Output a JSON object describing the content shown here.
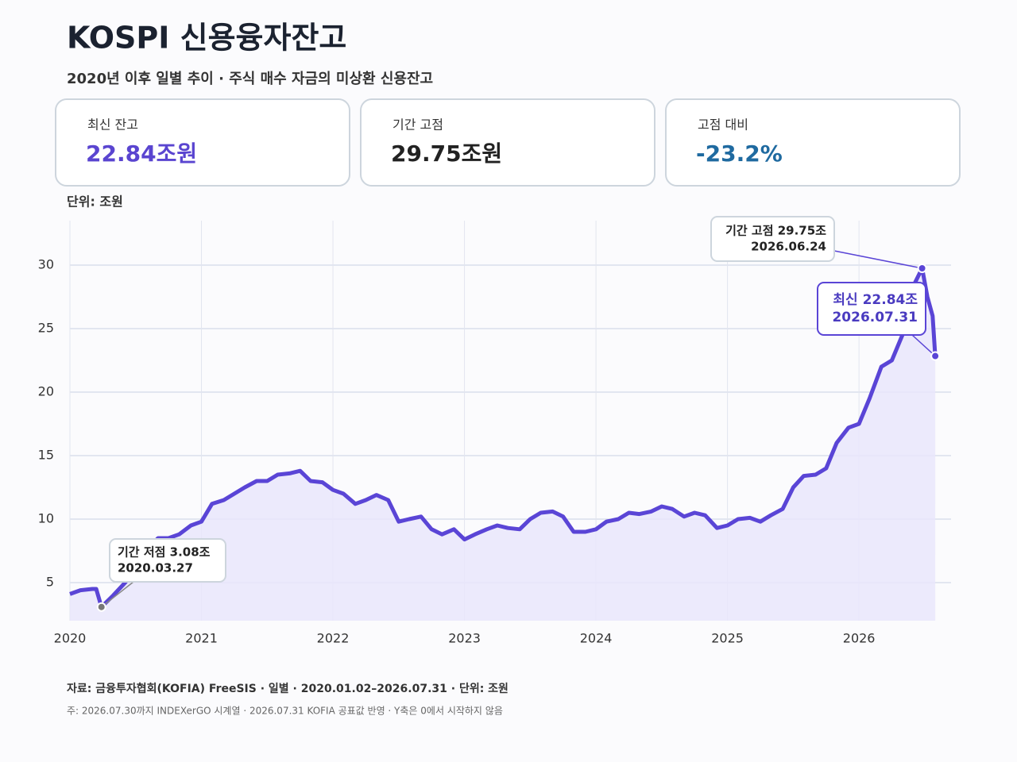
{
  "header": {
    "title": "KOSPI 신용융자잔고",
    "subtitle": "2020년 이후 일별 추이 · 주식 매수 자금의 미상환 신용잔고"
  },
  "cards": [
    {
      "label": "최신 잔고",
      "value": "22.84조원"
    },
    {
      "label": "기간 고점",
      "value": "29.75조원"
    },
    {
      "label": "고점 대비",
      "value": "-23.2%"
    }
  ],
  "unit": "단위: 조원",
  "chart_data": {
    "type": "line",
    "x": [
      2020.0,
      2020.08,
      2020.17,
      2020.2,
      2020.24,
      2020.33,
      2020.42,
      2020.5,
      2020.58,
      2020.67,
      2020.75,
      2020.83,
      2020.92,
      2021.0,
      2021.08,
      2021.17,
      2021.25,
      2021.33,
      2021.42,
      2021.5,
      2021.58,
      2021.67,
      2021.75,
      2021.83,
      2021.92,
      2022.0,
      2022.08,
      2022.17,
      2022.25,
      2022.33,
      2022.42,
      2022.5,
      2022.58,
      2022.67,
      2022.75,
      2022.83,
      2022.92,
      2023.0,
      2023.08,
      2023.17,
      2023.25,
      2023.33,
      2023.42,
      2023.5,
      2023.58,
      2023.67,
      2023.75,
      2023.83,
      2023.92,
      2024.0,
      2024.08,
      2024.17,
      2024.25,
      2024.33,
      2024.42,
      2024.5,
      2024.58,
      2024.67,
      2024.75,
      2024.83,
      2024.92,
      2025.0,
      2025.08,
      2025.17,
      2025.25,
      2025.33,
      2025.42,
      2025.5,
      2025.58,
      2025.67,
      2025.75,
      2025.83,
      2025.92,
      2026.0,
      2026.08,
      2026.17,
      2026.25,
      2026.33,
      2026.42,
      2026.48,
      2026.52,
      2026.56,
      2026.58
    ],
    "series": [
      {
        "name": "신용융자잔고",
        "color": "#5a45d6",
        "values": [
          4.1,
          4.4,
          4.5,
          4.5,
          3.08,
          4.0,
          5.0,
          6.0,
          7.5,
          8.5,
          8.5,
          8.8,
          9.5,
          9.8,
          11.2,
          11.5,
          12.0,
          12.5,
          13.0,
          13.0,
          13.5,
          13.6,
          13.8,
          13.0,
          12.9,
          12.3,
          12.0,
          11.2,
          11.5,
          11.9,
          11.5,
          9.8,
          10.0,
          10.2,
          9.2,
          8.8,
          9.2,
          8.4,
          8.8,
          9.2,
          9.5,
          9.3,
          9.2,
          10.0,
          10.5,
          10.6,
          10.2,
          9.0,
          9.0,
          9.2,
          9.8,
          10.0,
          10.5,
          10.4,
          10.6,
          11.0,
          10.8,
          10.2,
          10.5,
          10.3,
          9.3,
          9.5,
          10.0,
          10.1,
          9.8,
          10.3,
          10.8,
          12.5,
          13.4,
          13.5,
          14.0,
          16.0,
          17.2,
          17.5,
          19.5,
          22.0,
          22.5,
          24.5,
          28.5,
          29.75,
          27.5,
          26.0,
          22.84
        ]
      }
    ],
    "xlim": [
      2020,
      2026.7
    ],
    "xticks": [
      2020,
      2021,
      2022,
      2023,
      2024,
      2025,
      2026
    ],
    "ylim": [
      2,
      33.5
    ],
    "yticks": [
      5,
      10,
      15,
      20,
      25,
      30
    ],
    "grid": true,
    "annotations": [
      {
        "lines": [
          "기간 저점  3.08조",
          "2020.03.27"
        ],
        "x": 2020.24,
        "y": 3.08
      },
      {
        "lines": [
          "기간 고점  29.75조",
          "2026.06.24"
        ],
        "x": 2026.48,
        "y": 29.75
      },
      {
        "lines": [
          "최신  22.84조",
          "2026.07.31"
        ],
        "x": 2026.58,
        "y": 22.84
      }
    ]
  },
  "footer": {
    "source": "자료: 금융투자협회(KOFIA) FreeSIS · 일별 · 2020.01.02–2026.07.31 · 단위: 조원",
    "note": "주: 2026.07.30까지 INDEXerGO 시계열 · 2026.07.31 KOFIA 공표값 반영 · Y축은 0에서 시작하지 않음"
  }
}
